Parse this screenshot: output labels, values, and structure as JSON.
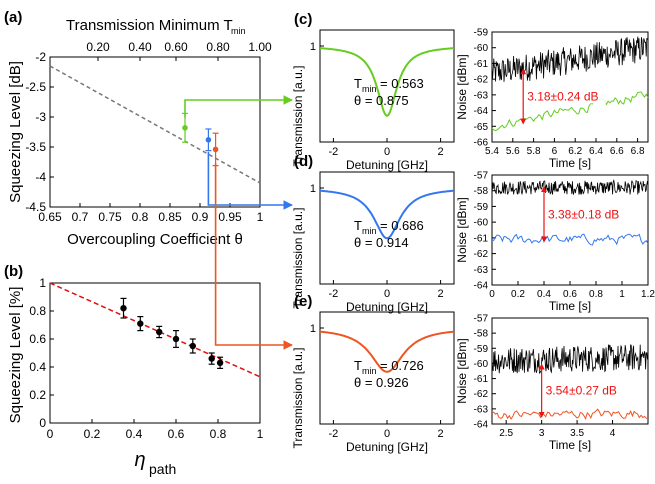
{
  "colors": {
    "green": "#66cc22",
    "blue": "#3377ee",
    "orange": "#ee5522",
    "red_dash": "#dd1111",
    "annot_red": "#ee1111",
    "gray_dash": "#777777",
    "black": "#000000"
  },
  "chart_data": [
    {
      "id": "a",
      "type": "scatter",
      "panel_label": "(a)",
      "top_axis_title": "Transmission Minimum T",
      "top_axis_sub": "min",
      "top_ticks": [
        "0.20",
        "0.40",
        "0.60",
        "0.80",
        "1.00"
      ],
      "top_tick_theta": [
        0.73,
        0.8,
        0.86,
        0.93,
        1.0
      ],
      "xlabel": "Overcoupling Coefficient θ",
      "ylabel": "Squeezing Level [dB]",
      "xlim": [
        0.65,
        1.0
      ],
      "ylim": [
        -4.5,
        -2.0
      ],
      "x_ticks": [
        0.65,
        0.7,
        0.75,
        0.8,
        0.85,
        0.9,
        0.95,
        1
      ],
      "x_tick_labels": [
        "0.65",
        "0.7",
        "0.75",
        "0.8",
        "0.85",
        "0.9",
        "0.95",
        "1"
      ],
      "y_ticks": [
        -2,
        -2.5,
        -3,
        -3.5,
        -4,
        -4.5
      ],
      "y_tick_labels": [
        "-2",
        "-2.5",
        "-3",
        "-3.5",
        "-4",
        "-4.5"
      ],
      "theory_line": {
        "x": [
          0.65,
          1.0
        ],
        "y": [
          -2.15,
          -4.1
        ]
      },
      "points": [
        {
          "x": 0.875,
          "y": -3.18,
          "err": 0.24,
          "color": "green"
        },
        {
          "x": 0.914,
          "y": -3.38,
          "err": 0.18,
          "color": "blue"
        },
        {
          "x": 0.926,
          "y": -3.54,
          "err": 0.27,
          "color": "orange"
        }
      ]
    },
    {
      "id": "b",
      "type": "scatter",
      "panel_label": "(b)",
      "xlabel_main": "η",
      "xlabel_sub": "path",
      "ylabel": "Squeezing Level [%]",
      "xlim": [
        0,
        1
      ],
      "ylim": [
        0,
        1
      ],
      "x_ticks": [
        0,
        0.2,
        0.4,
        0.6,
        0.8,
        1
      ],
      "x_tick_labels": [
        "0",
        "0.2",
        "0.4",
        "0.6",
        "0.8",
        "1"
      ],
      "y_ticks": [
        0,
        0.2,
        0.4,
        0.6,
        0.8,
        1
      ],
      "y_tick_labels": [
        "0",
        "0.2",
        "0.4",
        "0.6",
        "0.8",
        "1"
      ],
      "theory_line": {
        "x": [
          0,
          1
        ],
        "y": [
          1,
          0.33
        ]
      },
      "points": [
        {
          "x": 0.35,
          "y": 0.82,
          "err": 0.07
        },
        {
          "x": 0.43,
          "y": 0.71,
          "err": 0.05
        },
        {
          "x": 0.52,
          "y": 0.65,
          "err": 0.04
        },
        {
          "x": 0.6,
          "y": 0.6,
          "err": 0.06
        },
        {
          "x": 0.68,
          "y": 0.55,
          "err": 0.05
        },
        {
          "x": 0.77,
          "y": 0.46,
          "err": 0.04
        },
        {
          "x": 0.81,
          "y": 0.43,
          "err": 0.04
        }
      ]
    },
    {
      "id": "c-trans",
      "type": "line",
      "panel_label": "(c)",
      "color": "green",
      "xlabel": "Detuning [GHz]",
      "ylabel": "Transmission [a.u.]",
      "xlim": [
        -2.5,
        2.5
      ],
      "ylim": [
        0.4,
        1.1
      ],
      "x_ticks": [
        -2,
        0,
        2
      ],
      "x_tick_labels": [
        "-2",
        "0",
        "2"
      ],
      "y_ticks": [
        1
      ],
      "y_tick_labels": [
        "1"
      ],
      "tmin": 0.563,
      "width": 0.45,
      "annot_t_main": "T",
      "annot_t_sub": "min",
      "annot_t_val": "= 0.563",
      "annot_theta": "θ = 0.875"
    },
    {
      "id": "c-noise",
      "type": "line",
      "xlabel": "Time [s]",
      "ylabel": "Noise [dBm]",
      "xlim": [
        5.4,
        6.9
      ],
      "ylim": [
        -66,
        -59
      ],
      "x_ticks": [
        5.4,
        5.6,
        5.8,
        6.0,
        6.2,
        6.4,
        6.6,
        6.8
      ],
      "x_tick_labels": [
        "5.4",
        "5.6",
        "5.8",
        "6",
        "6.2",
        "6.4",
        "6.6",
        "6.8"
      ],
      "y_ticks": [
        -59,
        -60,
        -61,
        -62,
        -63,
        -64,
        -65,
        -66
      ],
      "y_tick_labels": [
        "-59",
        "-60",
        "-61",
        "-62",
        "-63",
        "-64",
        "-65",
        "-66"
      ],
      "black_trace": {
        "start": -61.6,
        "end": -60.0,
        "noise": 0.9
      },
      "color_trace": {
        "color": "green",
        "start": -65.0,
        "end": -63.0,
        "noise": 0.25
      },
      "arrow": {
        "x": 5.7,
        "y_top": -61.5,
        "y_bottom": -64.7
      },
      "annotation": "3.18±0.24 dB"
    },
    {
      "id": "d-trans",
      "type": "line",
      "panel_label": "(d)",
      "color": "blue",
      "xlabel": "Detuning [GHz]",
      "ylabel": "Transmission [a.u.]",
      "xlim": [
        -2.5,
        2.5
      ],
      "ylim": [
        0.4,
        1.1
      ],
      "x_ticks": [
        -2,
        0,
        2
      ],
      "x_tick_labels": [
        "-2",
        "0",
        "2"
      ],
      "y_ticks": [
        1
      ],
      "y_tick_labels": [
        "1"
      ],
      "tmin": 0.686,
      "width": 0.6,
      "annot_t_main": "T",
      "annot_t_sub": "min",
      "annot_t_val": "= 0.686",
      "annot_theta": "θ = 0.914"
    },
    {
      "id": "d-noise",
      "type": "line",
      "xlabel": "Time [s]",
      "ylabel": "Noise [dBm]",
      "xlim": [
        0,
        1.2
      ],
      "ylim": [
        -64,
        -57
      ],
      "x_ticks": [
        0,
        0.2,
        0.4,
        0.6,
        0.8,
        1,
        1.2
      ],
      "x_tick_labels": [
        "0",
        "0.2",
        "0.4",
        "0.6",
        "0.8",
        "1",
        "1.2"
      ],
      "y_ticks": [
        -57,
        -58,
        -59,
        -60,
        -61,
        -62,
        -63,
        -64
      ],
      "y_tick_labels": [
        "-57",
        "-58",
        "-59",
        "-60",
        "-61",
        "-62",
        "-63",
        "-64"
      ],
      "black_trace": {
        "start": -57.8,
        "end": -57.8,
        "noise": 0.45
      },
      "color_trace": {
        "color": "blue",
        "start": -61.1,
        "end": -61.1,
        "noise": 0.25
      },
      "arrow": {
        "x": 0.4,
        "y_top": -57.9,
        "y_bottom": -61.1
      },
      "annotation": "3.38±0.18 dB"
    },
    {
      "id": "e-trans",
      "type": "line",
      "panel_label": "(e)",
      "color": "orange",
      "xlabel": "Detuning [GHz]",
      "ylabel": "Transmission [a.u.]",
      "xlim": [
        -2.5,
        2.5
      ],
      "ylim": [
        0.4,
        1.1
      ],
      "x_ticks": [
        -2,
        0,
        2
      ],
      "x_tick_labels": [
        "-2",
        "0",
        "2"
      ],
      "y_ticks": [
        1
      ],
      "y_tick_labels": [
        "1"
      ],
      "tmin": 0.726,
      "width": 0.75,
      "annot_t_main": "T",
      "annot_t_sub": "min",
      "annot_t_val": "= 0.726",
      "annot_theta": "θ = 0.926"
    },
    {
      "id": "e-noise",
      "type": "line",
      "xlabel": "Time [s]",
      "ylabel": "Noise [dBm]",
      "xlim": [
        2.3,
        4.5
      ],
      "ylim": [
        -64,
        -57
      ],
      "x_ticks": [
        2.5,
        3,
        3.5,
        4
      ],
      "x_tick_labels": [
        "2.5",
        "3",
        "3.5",
        "4"
      ],
      "y_ticks": [
        -57,
        -58,
        -59,
        -60,
        -61,
        -62,
        -63,
        -64
      ],
      "y_tick_labels": [
        "-57",
        "-58",
        "-59",
        "-60",
        "-61",
        "-62",
        "-63",
        "-64"
      ],
      "black_trace": {
        "start": -59.8,
        "end": -59.6,
        "noise": 0.9
      },
      "color_trace": {
        "color": "orange",
        "start": -63.4,
        "end": -63.3,
        "noise": 0.25
      },
      "arrow": {
        "x": 3.0,
        "y_top": -60.2,
        "y_bottom": -63.4
      },
      "annotation": "3.54±0.27 dB"
    }
  ]
}
